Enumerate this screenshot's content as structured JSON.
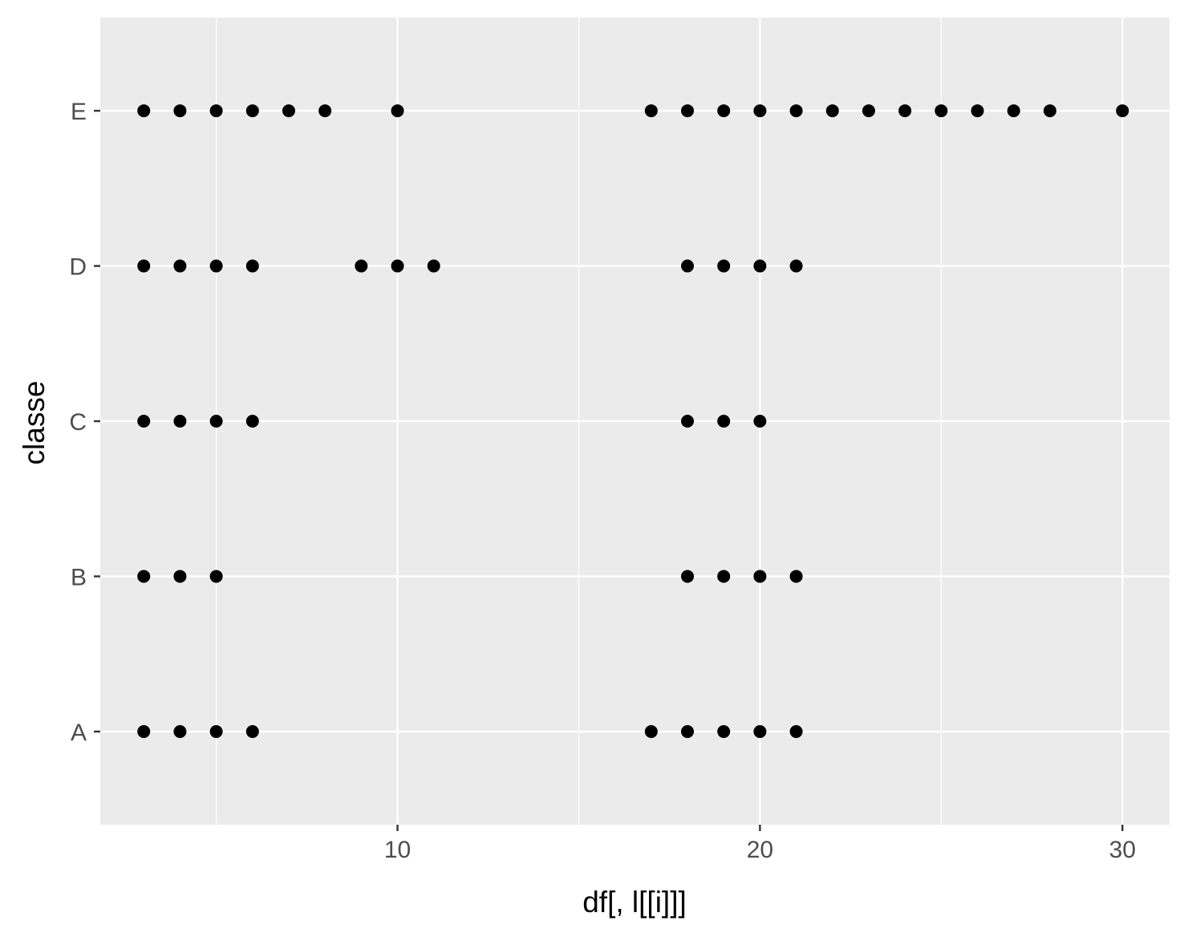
{
  "chart_data": {
    "type": "scatter",
    "xlabel": "df[, l[[i]]]",
    "ylabel": "classe",
    "xlim": [
      1.8,
      31.3
    ],
    "x_ticks": [
      10,
      20,
      30
    ],
    "y_categories": [
      "A",
      "B",
      "C",
      "D",
      "E"
    ],
    "grid": true,
    "panel_background": "#ebebeb",
    "grid_color": "#ffffff",
    "point_color": "#000000",
    "points": [
      {
        "y": "A",
        "x": [
          3,
          4,
          5,
          6,
          17,
          18,
          19,
          20,
          21
        ]
      },
      {
        "y": "B",
        "x": [
          3,
          4,
          5,
          18,
          19,
          20,
          21
        ]
      },
      {
        "y": "C",
        "x": [
          3,
          4,
          5,
          6,
          18,
          19,
          20
        ]
      },
      {
        "y": "D",
        "x": [
          3,
          4,
          5,
          6,
          9,
          10,
          11,
          18,
          19,
          20,
          21
        ]
      },
      {
        "y": "E",
        "x": [
          3,
          4,
          5,
          6,
          7,
          8,
          10,
          17,
          18,
          19,
          20,
          21,
          22,
          23,
          24,
          25,
          26,
          27,
          28,
          30
        ]
      }
    ]
  }
}
